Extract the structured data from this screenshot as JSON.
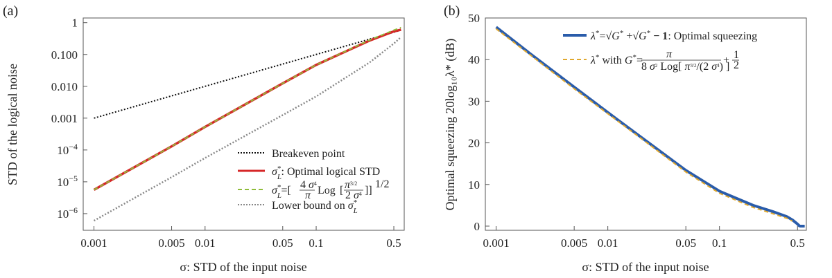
{
  "chart_data": [
    {
      "panel": "(a)",
      "type": "line",
      "xscale": "log",
      "yscale": "log",
      "xlim": [
        0.0008,
        0.62
      ],
      "ylim": [
        3e-07,
        1.4
      ],
      "xlabel": "σ: STD of the input noise",
      "ylabel": "STD of the logical noise",
      "xticks": [
        {
          "value": 0.001,
          "label": "0.001"
        },
        {
          "value": 0.005,
          "label": "0.005"
        },
        {
          "value": 0.01,
          "label": "0.01"
        },
        {
          "value": 0.05,
          "label": "0.05"
        },
        {
          "value": 0.1,
          "label": "0.1"
        },
        {
          "value": 0.5,
          "label": "0.5"
        }
      ],
      "yticks": [
        {
          "value": 1e-06,
          "label": "10",
          "exp": "−6"
        },
        {
          "value": 1e-05,
          "label": "10",
          "exp": "−5"
        },
        {
          "value": 0.0001,
          "label": "10",
          "exp": "−4"
        },
        {
          "value": 0.001,
          "label": "0.001"
        },
        {
          "value": 0.01,
          "label": "0.010"
        },
        {
          "value": 0.1,
          "label": "0.100"
        },
        {
          "value": 1,
          "label": "1"
        }
      ],
      "legend_position": "bottom-right",
      "series": [
        {
          "name": "Breakeven point",
          "color": "#111111",
          "dash": "dotted",
          "x": [
            0.001,
            0.005,
            0.01,
            0.05,
            0.1,
            0.5,
            0.58
          ],
          "y": [
            0.001,
            0.005,
            0.01,
            0.05,
            0.1,
            0.5,
            0.58
          ]
        },
        {
          "name": "σ*L: Optimal logical STD",
          "color": "#d62728",
          "dash": "solid",
          "x": [
            0.001,
            0.005,
            0.01,
            0.05,
            0.1,
            0.3,
            0.5,
            0.58
          ],
          "y": [
            5.6e-06,
            0.00013,
            0.00053,
            0.0124,
            0.047,
            0.27,
            0.53,
            0.6
          ]
        },
        {
          "name": "σ*L=[4σ⁴/π Log[π^(3/2)/(2σ⁴)]]^(1/2)",
          "color": "#8fbc3a",
          "dash": "dashed",
          "x": [
            0.001,
            0.005,
            0.01,
            0.05,
            0.1,
            0.3,
            0.5,
            0.58
          ],
          "y": [
            5.6e-06,
            0.00013,
            0.00053,
            0.0124,
            0.047,
            0.28,
            0.58,
            0.7
          ]
        },
        {
          "name": "Lower bound on σ*L",
          "color": "#888888",
          "dash": "dotted",
          "x": [
            0.001,
            0.005,
            0.01,
            0.05,
            0.1,
            0.3,
            0.5,
            0.58
          ],
          "y": [
            6e-07,
            1.4e-05,
            5.6e-05,
            0.00125,
            0.0048,
            0.055,
            0.22,
            0.35
          ]
        }
      ],
      "legend": {
        "breakeven": "Breakeven point",
        "optimal_label": ": Optimal logical STD",
        "formula_mid": "Log",
        "lower_label": "Lower bound on "
      }
    },
    {
      "panel": "(b)",
      "type": "line",
      "xscale": "log",
      "yscale": "linear",
      "xlim": [
        0.0008,
        0.6
      ],
      "ylim": [
        -1,
        50
      ],
      "xlabel": "σ: STD of the input noise",
      "ylabel": "Optimal squeezing 20log₁₀λ* (dB)",
      "xticks": [
        {
          "value": 0.001,
          "label": "0.001"
        },
        {
          "value": 0.005,
          "label": "0.005"
        },
        {
          "value": 0.01,
          "label": "0.01"
        },
        {
          "value": 0.05,
          "label": "0.05"
        },
        {
          "value": 0.1,
          "label": "0.1"
        },
        {
          "value": 0.5,
          "label": "0.5"
        }
      ],
      "yticks": [
        {
          "value": 0,
          "label": "0"
        },
        {
          "value": 10,
          "label": "10"
        },
        {
          "value": 20,
          "label": "20"
        },
        {
          "value": 30,
          "label": "30"
        },
        {
          "value": 40,
          "label": "40"
        },
        {
          "value": 50,
          "label": "50"
        }
      ],
      "legend_position": "top-right",
      "series": [
        {
          "name": "λ*=√G* + √(G*−1) : Optimal squeezing",
          "color": "#2a5caa",
          "dash": "solid",
          "x": [
            0.001,
            0.002,
            0.005,
            0.01,
            0.02,
            0.05,
            0.1,
            0.2,
            0.3,
            0.4,
            0.45,
            0.5,
            0.52,
            0.53,
            0.58
          ],
          "y": [
            47.8,
            41.5,
            33.4,
            27.3,
            21.3,
            13.4,
            8.4,
            5.0,
            3.5,
            2.3,
            1.5,
            0.5,
            0.05,
            0.0,
            0.0
          ]
        },
        {
          "name": "λ* with G*=π/(8σ² Log[π^(3/2)/(2σ⁴)]) + 1/2",
          "color": "#e0a82e",
          "dash": "dashed",
          "x": [
            0.001,
            0.002,
            0.005,
            0.01,
            0.02,
            0.05,
            0.1,
            0.2,
            0.3,
            0.4,
            0.45
          ],
          "y": [
            47.4,
            41.2,
            33.0,
            27.0,
            21.0,
            13.0,
            7.9,
            4.5,
            3.0,
            1.9,
            1.2
          ]
        }
      ],
      "legend": {
        "optimal_label": ": Optimal squeezing",
        "with_label": " with "
      }
    }
  ]
}
